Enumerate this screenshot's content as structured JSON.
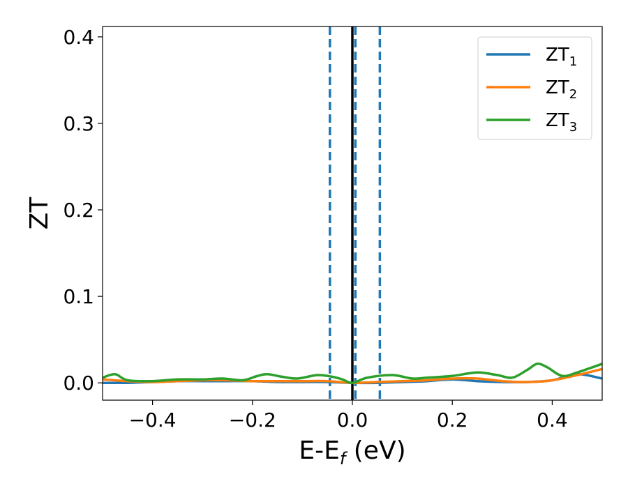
{
  "chart_data": {
    "type": "line",
    "xlabel": "E-E",
    "xlabel_sub": "f",
    "xlabel_unit": " (eV)",
    "ylabel": "ZT",
    "xlim": [
      -0.5,
      0.5
    ],
    "ylim": [
      -0.02,
      0.412
    ],
    "xticks": [
      -0.4,
      -0.2,
      0.0,
      0.2,
      0.4
    ],
    "xtick_labels": [
      "−0.4",
      "−0.2",
      "0.0",
      "0.2",
      "0.4"
    ],
    "yticks": [
      0.0,
      0.1,
      0.2,
      0.3,
      0.4
    ],
    "ytick_labels": [
      "0.0",
      "0.1",
      "0.2",
      "0.3",
      "0.4"
    ],
    "grid": false,
    "legend_position": "top-right",
    "vlines": [
      {
        "x": 0.0,
        "style": "solid",
        "color": "#000000"
      },
      {
        "x": -0.045,
        "style": "dashed",
        "color": "#1f77b4"
      },
      {
        "x": 0.006,
        "style": "dashed",
        "color": "#1f77b4"
      },
      {
        "x": 0.055,
        "style": "dashed",
        "color": "#1f77b4"
      }
    ],
    "series": [
      {
        "name": "ZT",
        "name_sub": "1",
        "color": "#1f77b4",
        "x": [
          -0.5,
          -0.45,
          -0.4,
          -0.35,
          -0.3,
          -0.25,
          -0.2,
          -0.15,
          -0.1,
          -0.05,
          0.0,
          0.05,
          0.1,
          0.15,
          0.2,
          0.25,
          0.3,
          0.35,
          0.4,
          0.45,
          0.5
        ],
        "y": [
          0.0,
          0.0,
          0.001,
          0.002,
          0.002,
          0.002,
          0.002,
          0.001,
          0.001,
          0.001,
          0.0,
          0.0,
          0.001,
          0.002,
          0.004,
          0.002,
          0.001,
          0.001,
          0.003,
          0.01,
          0.005
        ]
      },
      {
        "name": "ZT",
        "name_sub": "2",
        "color": "#ff7f0e",
        "x": [
          -0.5,
          -0.45,
          -0.4,
          -0.35,
          -0.3,
          -0.25,
          -0.2,
          -0.15,
          -0.1,
          -0.05,
          0.0,
          0.05,
          0.1,
          0.15,
          0.2,
          0.25,
          0.3,
          0.35,
          0.4,
          0.45,
          0.5
        ],
        "y": [
          0.004,
          0.002,
          0.001,
          0.002,
          0.003,
          0.003,
          0.002,
          0.002,
          0.002,
          0.002,
          0.0,
          0.001,
          0.002,
          0.003,
          0.005,
          0.005,
          0.002,
          0.001,
          0.003,
          0.009,
          0.016
        ]
      },
      {
        "name": "ZT",
        "name_sub": "3",
        "color": "#2ca02c",
        "x": [
          -0.5,
          -0.475,
          -0.45,
          -0.4,
          -0.35,
          -0.3,
          -0.26,
          -0.22,
          -0.19,
          -0.17,
          -0.14,
          -0.11,
          -0.07,
          -0.04,
          -0.02,
          0.0,
          0.03,
          0.08,
          0.12,
          0.15,
          0.2,
          0.25,
          0.29,
          0.32,
          0.35,
          0.37,
          0.39,
          0.42,
          0.45,
          0.5
        ],
        "y": [
          0.006,
          0.01,
          0.003,
          0.002,
          0.004,
          0.004,
          0.005,
          0.003,
          0.008,
          0.01,
          0.007,
          0.005,
          0.009,
          0.007,
          0.004,
          0.0,
          0.006,
          0.009,
          0.005,
          0.006,
          0.008,
          0.012,
          0.009,
          0.006,
          0.015,
          0.022,
          0.018,
          0.008,
          0.012,
          0.022
        ]
      }
    ]
  }
}
